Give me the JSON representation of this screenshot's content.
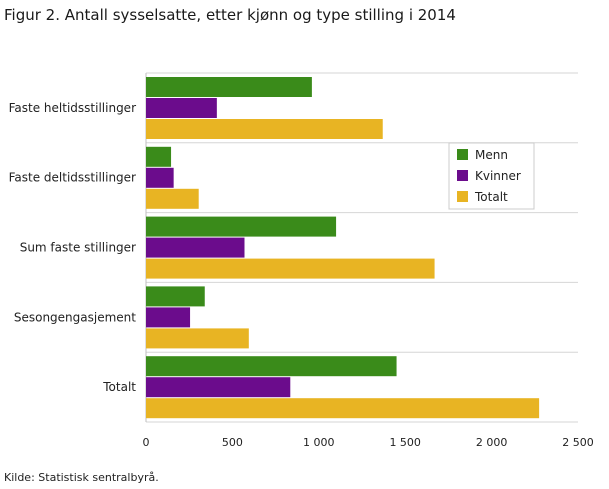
{
  "title": "Figur 2. Antall sysselsatte, etter kjønn og type stilling i 2014",
  "source": "Kilde: Statistisk sentralbyrå.",
  "chart_data": {
    "type": "bar",
    "orientation": "horizontal",
    "categories": [
      "Faste heltidsstillinger",
      "Faste deltidsstillinger",
      "Sum faste stillinger",
      "Sesongengasjement",
      "Totalt"
    ],
    "series": [
      {
        "name": "Menn",
        "color": "#3a8b1a",
        "values": [
          960,
          145,
          1100,
          340,
          1450
        ]
      },
      {
        "name": "Kvinner",
        "color": "#6b0c8c",
        "values": [
          410,
          160,
          570,
          255,
          835
        ]
      },
      {
        "name": "Totalt",
        "color": "#e8b423",
        "values": [
          1370,
          305,
          1670,
          595,
          2275
        ]
      }
    ],
    "xlim": [
      0,
      2500
    ],
    "xticks": [
      0,
      500,
      1000,
      1500,
      2000,
      2500
    ],
    "xtick_labels": [
      "0",
      "500",
      "1 000",
      "1 500",
      "2 000",
      "2 500"
    ],
    "grid": "horizontal separators between categories",
    "legend": "upper right, inside plot"
  }
}
